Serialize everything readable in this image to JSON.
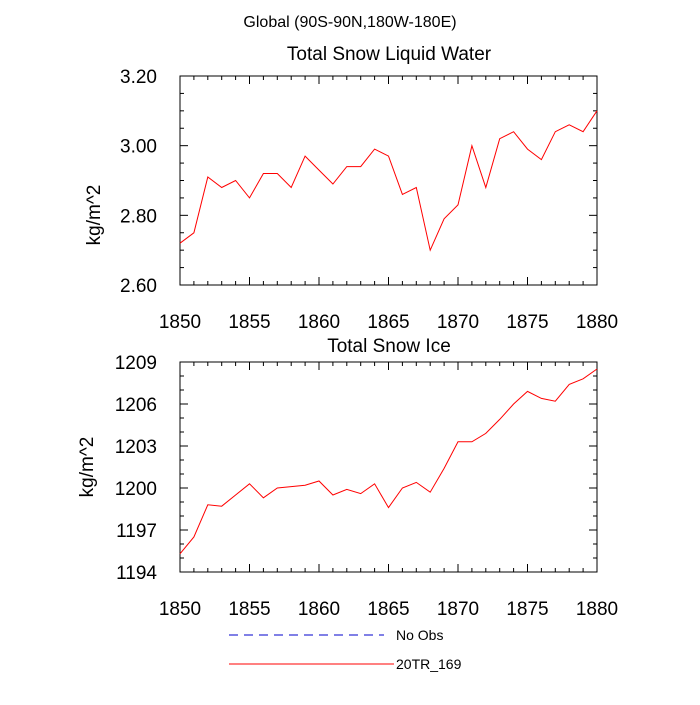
{
  "figure": {
    "title": "Global (90S-90N,180W-180E)"
  },
  "colors": {
    "series": "#ff0000",
    "no_obs": "#0000cc",
    "axis": "#000000"
  },
  "legend": [
    {
      "label": "No Obs",
      "style": "dashed",
      "color": "#0000cc"
    },
    {
      "label": "20TR_169",
      "style": "solid",
      "color": "#ff0000"
    }
  ],
  "chart_data": [
    {
      "type": "line",
      "title": "Total Snow Liquid Water",
      "xlabel": "",
      "ylabel": "kg/m^2",
      "xlim": [
        1850,
        1880
      ],
      "ylim": [
        2.6,
        3.2
      ],
      "x_ticks": [
        1850,
        1855,
        1860,
        1865,
        1870,
        1875,
        1880
      ],
      "x_tick_labels": [
        "1850",
        "1855",
        "1860",
        "1865",
        "1870",
        "1875",
        "1880"
      ],
      "y_ticks": [
        2.6,
        2.8,
        3.0,
        3.2
      ],
      "y_tick_labels": [
        "2.60",
        "2.80",
        "3.00",
        "3.20"
      ],
      "y_minor_step": 0.05,
      "grid": false,
      "series": [
        {
          "name": "20TR_169",
          "color": "#ff0000",
          "x": [
            1850,
            1851,
            1852,
            1853,
            1854,
            1855,
            1856,
            1857,
            1858,
            1859,
            1860,
            1861,
            1862,
            1863,
            1864,
            1865,
            1866,
            1867,
            1868,
            1869,
            1870,
            1871,
            1872,
            1873,
            1874,
            1875,
            1876,
            1877,
            1878,
            1879,
            1880
          ],
          "values": [
            2.72,
            2.75,
            2.91,
            2.88,
            2.9,
            2.85,
            2.92,
            2.92,
            2.88,
            2.97,
            2.93,
            2.89,
            2.94,
            2.94,
            2.99,
            2.97,
            2.86,
            2.88,
            2.7,
            2.79,
            2.83,
            3.0,
            2.88,
            3.02,
            3.04,
            2.99,
            2.96,
            3.04,
            3.06,
            3.04,
            3.1
          ]
        }
      ]
    },
    {
      "type": "line",
      "title": "Total Snow Ice",
      "xlabel": "",
      "ylabel": "kg/m^2",
      "xlim": [
        1850,
        1880
      ],
      "ylim": [
        1194,
        1209
      ],
      "x_ticks": [
        1850,
        1855,
        1860,
        1865,
        1870,
        1875,
        1880
      ],
      "x_tick_labels": [
        "1850",
        "1855",
        "1860",
        "1865",
        "1870",
        "1875",
        "1880"
      ],
      "y_ticks": [
        1194,
        1197,
        1200,
        1203,
        1206,
        1209
      ],
      "y_tick_labels": [
        "1194",
        "1197",
        "1200",
        "1203",
        "1206",
        "1209"
      ],
      "y_minor_step": 1,
      "grid": false,
      "series": [
        {
          "name": "20TR_169",
          "color": "#ff0000",
          "x": [
            1850,
            1851,
            1852,
            1853,
            1854,
            1855,
            1856,
            1857,
            1858,
            1859,
            1860,
            1861,
            1862,
            1863,
            1864,
            1865,
            1866,
            1867,
            1868,
            1869,
            1870,
            1871,
            1872,
            1873,
            1874,
            1875,
            1876,
            1877,
            1878,
            1879,
            1880
          ],
          "values": [
            1195.3,
            1196.5,
            1198.8,
            1198.7,
            1199.5,
            1200.3,
            1199.3,
            1200.0,
            1200.1,
            1200.2,
            1200.5,
            1199.5,
            1199.9,
            1199.6,
            1200.3,
            1198.6,
            1200.0,
            1200.4,
            1199.7,
            1201.4,
            1203.3,
            1203.3,
            1203.9,
            1204.9,
            1206.0,
            1206.9,
            1206.4,
            1206.2,
            1207.4,
            1207.8,
            1208.5
          ]
        }
      ]
    }
  ]
}
